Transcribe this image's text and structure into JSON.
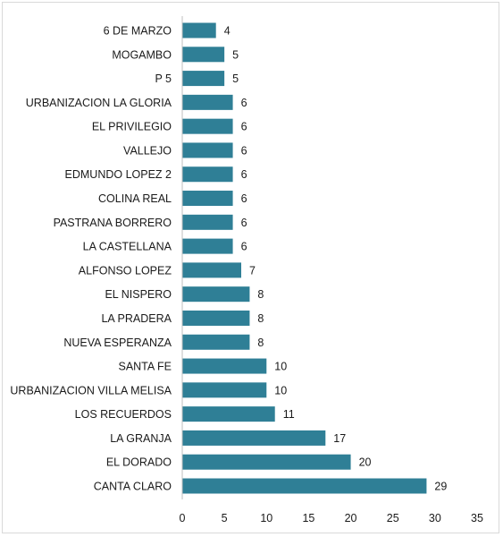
{
  "chart_data": {
    "type": "bar",
    "orientation": "horizontal",
    "categories": [
      "6 DE MARZO",
      "MOGAMBO",
      "P 5",
      "URBANIZACION LA GLORIA",
      "EL PRIVILEGIO",
      "VALLEJO",
      "EDMUNDO LOPEZ 2",
      "COLINA REAL",
      "PASTRANA BORRERO",
      "LA CASTELLANA",
      "ALFONSO LOPEZ",
      "EL NISPERO",
      "LA PRADERA",
      "NUEVA ESPERANZA",
      "SANTA FE",
      "URBANIZACION VILLA MELISA",
      "LOS RECUERDOS",
      "LA GRANJA",
      "EL DORADO",
      "CANTA CLARO"
    ],
    "values": [
      4,
      5,
      5,
      6,
      6,
      6,
      6,
      6,
      6,
      6,
      7,
      8,
      8,
      8,
      10,
      10,
      11,
      17,
      20,
      29
    ],
    "x_ticks": [
      "0",
      "5",
      "10",
      "15",
      "20",
      "25",
      "30",
      "35"
    ],
    "xlim": [
      0,
      35
    ],
    "data_labels": true,
    "grid": false,
    "legend": "none",
    "bar_color": "#2f7f96",
    "title": "",
    "xlabel": "",
    "ylabel": ""
  }
}
